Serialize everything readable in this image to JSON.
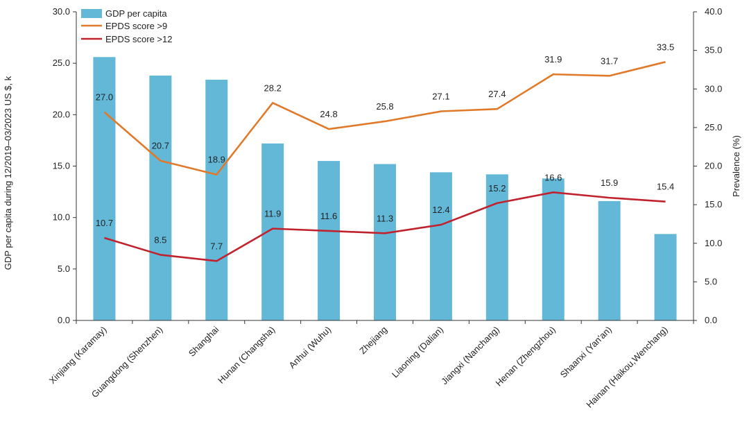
{
  "chart_data": {
    "type": "bar",
    "categories": [
      "Xinjiang (Karamay)",
      "Guangdong (Shenzhen)",
      "Shanghai",
      "Hunan (Changsha)",
      "Anhui (Wuhu)",
      "Zhejiang",
      "Liaoning (Dalian)",
      "Jiangxi (Nanchang)",
      "Henan (Zhengzhou)",
      "Shaanxi (Yan'an)",
      "Hainan (Haikou,Wenchang)"
    ],
    "series": [
      {
        "name": "GDP per capita",
        "type": "bar",
        "axis": "left",
        "color": "#63b8d8",
        "values": [
          25.6,
          23.8,
          23.4,
          17.2,
          15.5,
          15.2,
          14.4,
          14.2,
          13.8,
          11.6,
          8.4
        ]
      },
      {
        "name": "EPDS score >9",
        "type": "line",
        "axis": "right",
        "color": "#e07a2a",
        "values": [
          27.0,
          20.7,
          18.9,
          28.2,
          24.8,
          25.8,
          27.1,
          27.4,
          31.9,
          31.7,
          33.5
        ],
        "labels": [
          "27.0",
          "20.7",
          "18.9",
          "28.2",
          "24.8",
          "25.8",
          "27.1",
          "27.4",
          "31.9",
          "31.7",
          "33.5"
        ]
      },
      {
        "name": "EPDS score >12",
        "type": "line",
        "axis": "right",
        "color": "#c0222e",
        "values": [
          10.7,
          8.5,
          7.7,
          11.9,
          11.6,
          11.3,
          12.4,
          15.2,
          16.6,
          15.9,
          15.4
        ],
        "labels": [
          "10.7",
          "8.5",
          "7.7",
          "11.9",
          "11.6",
          "11.3",
          "12.4",
          "15.2",
          "16.6",
          "15.9",
          "15.4"
        ]
      }
    ],
    "ylabel": "GDP per capita during 12/2019–03/2023 US $, k",
    "y2label": "Prevalence (%)",
    "ylim": [
      0,
      30
    ],
    "y2lim": [
      0,
      40
    ],
    "yticks": [
      "0.0",
      "5.0",
      "10.0",
      "15.0",
      "20.0",
      "25.0",
      "30.0"
    ],
    "y2ticks": [
      "0.0",
      "5.0",
      "10.0",
      "15.0",
      "20.0",
      "25.0",
      "30.0",
      "35.0",
      "40.0"
    ],
    "grid": false,
    "legend_position": "top-left"
  }
}
